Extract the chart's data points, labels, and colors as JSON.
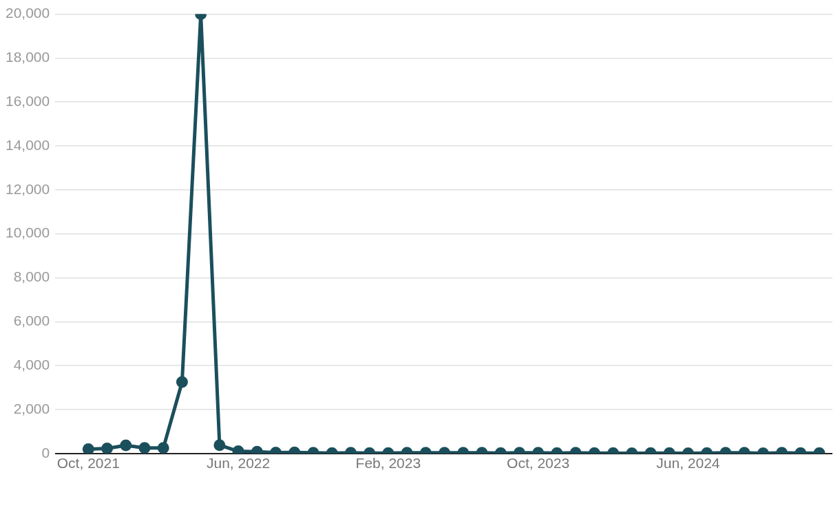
{
  "chart_data": {
    "type": "line",
    "x": [
      "2021-10",
      "2021-11",
      "2021-12",
      "2022-01",
      "2022-02",
      "2022-03",
      "2022-04",
      "2022-05",
      "2022-06",
      "2022-07",
      "2022-08",
      "2022-09",
      "2022-10",
      "2022-11",
      "2022-12",
      "2023-01",
      "2023-02",
      "2023-03",
      "2023-04",
      "2023-05",
      "2023-06",
      "2023-07",
      "2023-08",
      "2023-09",
      "2023-10",
      "2023-11",
      "2023-12",
      "2024-01",
      "2024-02",
      "2024-03",
      "2024-04",
      "2024-05",
      "2024-06",
      "2024-07",
      "2024-08",
      "2024-09",
      "2024-10",
      "2024-11",
      "2024-12",
      "2025-01"
    ],
    "series": [
      {
        "color": "#1b4f5c",
        "values": [
          200,
          230,
          370,
          250,
          250,
          3250,
          20000,
          380,
          100,
          80,
          40,
          50,
          30,
          20,
          30,
          20,
          20,
          30,
          30,
          30,
          30,
          30,
          20,
          30,
          30,
          20,
          30,
          20,
          20,
          10,
          20,
          20,
          10,
          20,
          30,
          30,
          10,
          30,
          20,
          20
        ]
      }
    ],
    "xlim": [
      "2021-08-08",
      "2025-01-22"
    ],
    "xticks": [
      {
        "value": "2021-10",
        "label": "Oct, 2021"
      },
      {
        "value": "2022-06",
        "label": "Jun, 2022"
      },
      {
        "value": "2023-02",
        "label": "Feb, 2023"
      },
      {
        "value": "2023-10",
        "label": "Oct, 2023"
      },
      {
        "value": "2024-06",
        "label": "Jun, 2024"
      }
    ],
    "ylim": [
      0,
      20000
    ],
    "yticks": [
      {
        "value": 0,
        "label": "0"
      },
      {
        "value": 2000,
        "label": "2,000"
      },
      {
        "value": 4000,
        "label": "4,000"
      },
      {
        "value": 6000,
        "label": "6,000"
      },
      {
        "value": 8000,
        "label": "8,000"
      },
      {
        "value": 10000,
        "label": "10,000"
      },
      {
        "value": 12000,
        "label": "12,000"
      },
      {
        "value": 14000,
        "label": "14,000"
      },
      {
        "value": 16000,
        "label": "16,000"
      },
      {
        "value": 18000,
        "label": "18,000"
      },
      {
        "value": 20000,
        "label": "20,000"
      }
    ],
    "grid": "y",
    "legend": false,
    "marker": "circle",
    "line_style": "solid"
  }
}
